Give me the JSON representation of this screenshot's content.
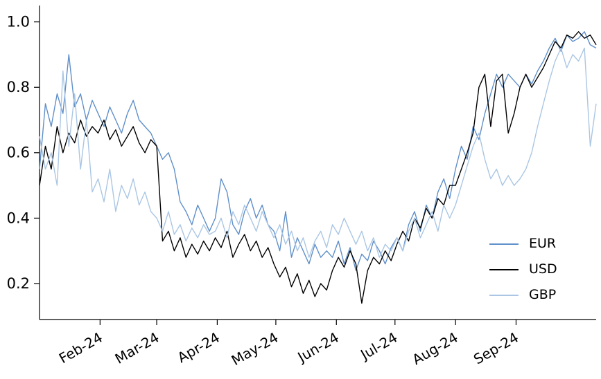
{
  "chart": {
    "background_color": "#ffffff",
    "axis_color": "#000000",
    "tick_label_color": "#000000"
  },
  "chart_data": {
    "type": "line",
    "title": "",
    "xlabel": "",
    "ylabel": "",
    "grid": false,
    "legend_position": "lower right inside",
    "legend_entries": [
      "EUR",
      "USD",
      "GBP"
    ],
    "x_start_day": 0,
    "x_step_days": 3,
    "xlim_days": [
      0,
      285
    ],
    "ylim": [
      0.09,
      1.05
    ],
    "y_ticks": [
      0.2,
      0.4,
      0.6,
      0.8,
      1.0
    ],
    "x_ticks": [
      {
        "day": 31,
        "label": "Feb-24"
      },
      {
        "day": 60,
        "label": "Mar-24"
      },
      {
        "day": 91,
        "label": "Apr-24"
      },
      {
        "day": 121,
        "label": "May-24"
      },
      {
        "day": 152,
        "label": "Jun-24"
      },
      {
        "day": 182,
        "label": "Jul-24"
      },
      {
        "day": 213,
        "label": "Aug-24"
      },
      {
        "day": 244,
        "label": "Sep-24"
      }
    ],
    "series": [
      {
        "name": "EUR",
        "color": "#5f8fc9",
        "values": [
          0.55,
          0.75,
          0.68,
          0.78,
          0.72,
          0.9,
          0.74,
          0.78,
          0.7,
          0.76,
          0.72,
          0.68,
          0.74,
          0.7,
          0.66,
          0.72,
          0.76,
          0.7,
          0.68,
          0.66,
          0.62,
          0.58,
          0.6,
          0.55,
          0.45,
          0.42,
          0.38,
          0.44,
          0.4,
          0.36,
          0.4,
          0.52,
          0.48,
          0.38,
          0.35,
          0.42,
          0.46,
          0.4,
          0.44,
          0.38,
          0.36,
          0.3,
          0.42,
          0.28,
          0.34,
          0.3,
          0.26,
          0.32,
          0.28,
          0.3,
          0.28,
          0.33,
          0.26,
          0.31,
          0.24,
          0.29,
          0.27,
          0.33,
          0.3,
          0.26,
          0.31,
          0.34,
          0.3,
          0.38,
          0.42,
          0.36,
          0.44,
          0.4,
          0.48,
          0.52,
          0.46,
          0.55,
          0.62,
          0.58,
          0.68,
          0.64,
          0.72,
          0.78,
          0.84,
          0.8,
          0.84,
          0.82,
          0.8,
          0.84,
          0.81,
          0.85,
          0.88,
          0.92,
          0.95,
          0.91,
          0.96,
          0.94,
          0.95,
          0.97,
          0.93,
          0.92
        ]
      },
      {
        "name": "USD",
        "color": "#000000",
        "values": [
          0.5,
          0.62,
          0.55,
          0.68,
          0.6,
          0.66,
          0.63,
          0.7,
          0.65,
          0.68,
          0.66,
          0.7,
          0.64,
          0.67,
          0.62,
          0.65,
          0.68,
          0.63,
          0.6,
          0.64,
          0.62,
          0.33,
          0.36,
          0.3,
          0.34,
          0.28,
          0.32,
          0.29,
          0.33,
          0.3,
          0.34,
          0.31,
          0.36,
          0.28,
          0.32,
          0.35,
          0.3,
          0.33,
          0.28,
          0.31,
          0.26,
          0.22,
          0.25,
          0.19,
          0.23,
          0.17,
          0.21,
          0.16,
          0.2,
          0.18,
          0.24,
          0.28,
          0.25,
          0.3,
          0.26,
          0.14,
          0.24,
          0.28,
          0.26,
          0.3,
          0.27,
          0.32,
          0.36,
          0.33,
          0.4,
          0.37,
          0.43,
          0.4,
          0.46,
          0.44,
          0.5,
          0.5,
          0.55,
          0.6,
          0.66,
          0.8,
          0.84,
          0.68,
          0.82,
          0.84,
          0.66,
          0.72,
          0.8,
          0.84,
          0.8,
          0.83,
          0.86,
          0.9,
          0.94,
          0.92,
          0.96,
          0.95,
          0.97,
          0.95,
          0.96,
          0.93
        ]
      },
      {
        "name": "GBP",
        "color": "#aac6e4",
        "values": [
          0.65,
          0.55,
          0.6,
          0.5,
          0.85,
          0.62,
          0.78,
          0.55,
          0.7,
          0.48,
          0.52,
          0.45,
          0.55,
          0.42,
          0.5,
          0.46,
          0.52,
          0.44,
          0.48,
          0.42,
          0.4,
          0.36,
          0.42,
          0.35,
          0.38,
          0.33,
          0.37,
          0.34,
          0.38,
          0.35,
          0.36,
          0.4,
          0.34,
          0.42,
          0.38,
          0.44,
          0.4,
          0.36,
          0.42,
          0.38,
          0.34,
          0.38,
          0.32,
          0.36,
          0.3,
          0.34,
          0.28,
          0.33,
          0.36,
          0.31,
          0.38,
          0.35,
          0.4,
          0.36,
          0.32,
          0.36,
          0.3,
          0.34,
          0.28,
          0.32,
          0.3,
          0.34,
          0.3,
          0.36,
          0.4,
          0.34,
          0.38,
          0.42,
          0.36,
          0.44,
          0.4,
          0.44,
          0.5,
          0.56,
          0.62,
          0.66,
          0.58,
          0.52,
          0.55,
          0.5,
          0.53,
          0.5,
          0.52,
          0.55,
          0.6,
          0.68,
          0.75,
          0.82,
          0.88,
          0.92,
          0.86,
          0.9,
          0.88,
          0.92,
          0.62,
          0.75
        ]
      }
    ]
  }
}
